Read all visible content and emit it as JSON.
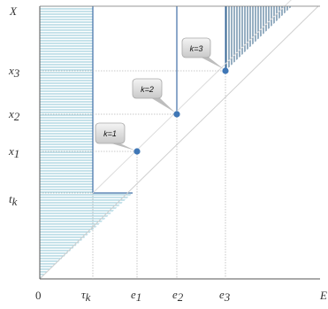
{
  "axes": {
    "x_label": "E",
    "y_label": "X",
    "origin_label": "0"
  },
  "x_ticks": [
    {
      "base": "τ",
      "sub": "k"
    },
    {
      "base": "e",
      "sub": "1"
    },
    {
      "base": "e",
      "sub": "2"
    },
    {
      "base": "e",
      "sub": "3"
    }
  ],
  "y_ticks": [
    {
      "base": "x",
      "sub": "3"
    },
    {
      "base": "x",
      "sub": "2"
    },
    {
      "base": "x",
      "sub": "1"
    },
    {
      "base": "t",
      "sub": "k"
    }
  ],
  "callouts": [
    {
      "label": "k=1"
    },
    {
      "label": "k=2"
    },
    {
      "label": "k=3"
    }
  ],
  "colors": {
    "light_hatch": "#6fb8cc",
    "dark_hatch": "#2f5f86",
    "point": "#3f77b6",
    "vertical_line": "#3f6fa6",
    "diagonal": "#d4d4d4",
    "axis": "#555555",
    "guide": "#b8b8b8"
  }
}
